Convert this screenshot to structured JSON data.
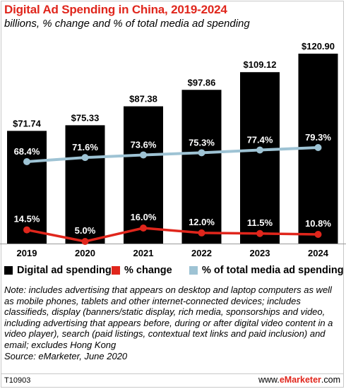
{
  "title": "Digital Ad Spending in China, 2019-2024",
  "subtitle": "billions, % change and % of total media ad spending",
  "colors": {
    "bars": "#000000",
    "change": "#e0261c",
    "share": "#9ec3d4",
    "accent": "#e0261c"
  },
  "chart_data": {
    "type": "bar",
    "categories": [
      "2019",
      "2020",
      "2021",
      "2022",
      "2023",
      "2024"
    ],
    "series": [
      {
        "name": "Digital ad spending",
        "type": "bar",
        "values": [
          71.74,
          75.33,
          87.38,
          97.86,
          109.12,
          120.9
        ],
        "labels": [
          "$71.74",
          "$75.33",
          "$87.38",
          "$97.86",
          "$109.12",
          "$120.90"
        ]
      },
      {
        "name": "% change",
        "type": "line",
        "values": [
          14.5,
          5.0,
          16.0,
          12.0,
          11.5,
          10.8
        ],
        "labels": [
          "14.5%",
          "5.0%",
          "16.0%",
          "12.0%",
          "11.5%",
          "10.8%"
        ]
      },
      {
        "name": "% of total media ad spending",
        "type": "line",
        "values": [
          68.4,
          71.6,
          73.6,
          75.3,
          77.4,
          79.3
        ],
        "labels": [
          "68.4%",
          "71.6%",
          "73.6%",
          "75.3%",
          "77.4%",
          "79.3%"
        ]
      }
    ],
    "legend_position": "bottom",
    "grid": false
  },
  "note": "Note: includes advertising that appears on desktop and laptop computers as well as mobile phones, tablets and other internet-connected devices; includes classifieds, display (banners/static display, rich media, sponsorships and video, including advertising that appears before, during or after digital video content in a video player), search (paid listings, contextual text links and paid inclusion) and email; excludes Hong Kong",
  "source": "Source: eMarketer, June 2020",
  "footer": {
    "chart_id": "T10903",
    "brand_prefix": "www.",
    "brand_name": "eMarketer",
    "brand_suffix": ".com"
  }
}
